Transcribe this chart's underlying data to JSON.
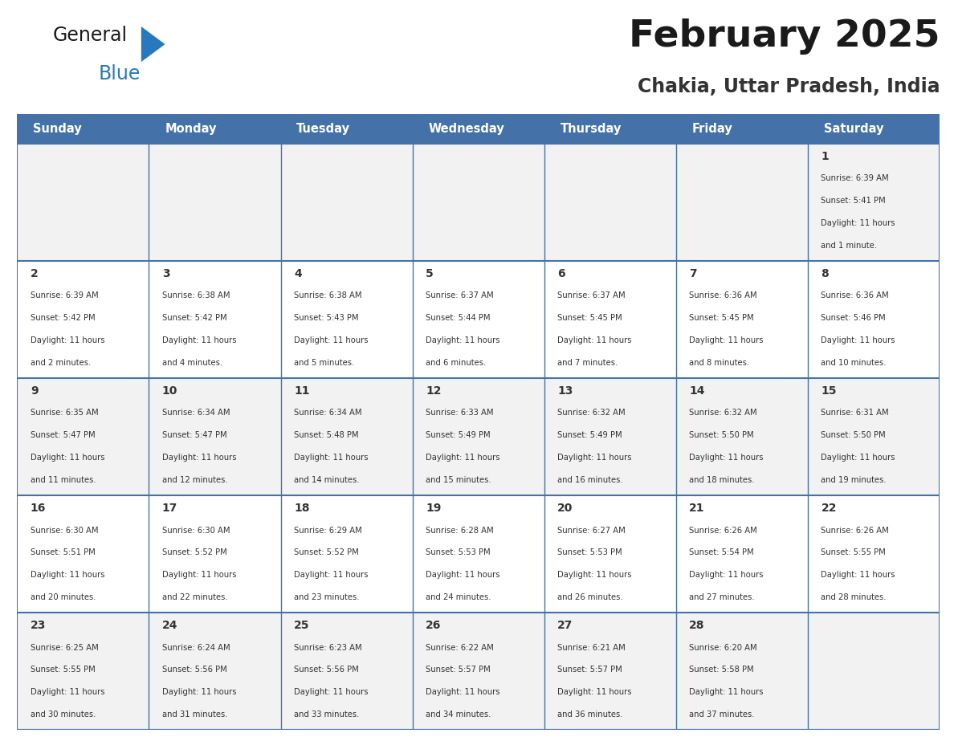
{
  "title": "February 2025",
  "subtitle": "Chakia, Uttar Pradesh, India",
  "header_bg": "#4472a8",
  "header_text_color": "#ffffff",
  "row_bg_odd": "#f2f2f2",
  "row_bg_even": "#ffffff",
  "border_color": "#4472a8",
  "text_color": "#333333",
  "day_names": [
    "Sunday",
    "Monday",
    "Tuesday",
    "Wednesday",
    "Thursday",
    "Friday",
    "Saturday"
  ],
  "days": [
    {
      "day": 1,
      "col": 6,
      "row": 0,
      "sunrise": "6:39 AM",
      "sunset": "5:41 PM",
      "daylight": "11 hours and 1 minute."
    },
    {
      "day": 2,
      "col": 0,
      "row": 1,
      "sunrise": "6:39 AM",
      "sunset": "5:42 PM",
      "daylight": "11 hours and 2 minutes."
    },
    {
      "day": 3,
      "col": 1,
      "row": 1,
      "sunrise": "6:38 AM",
      "sunset": "5:42 PM",
      "daylight": "11 hours and 4 minutes."
    },
    {
      "day": 4,
      "col": 2,
      "row": 1,
      "sunrise": "6:38 AM",
      "sunset": "5:43 PM",
      "daylight": "11 hours and 5 minutes."
    },
    {
      "day": 5,
      "col": 3,
      "row": 1,
      "sunrise": "6:37 AM",
      "sunset": "5:44 PM",
      "daylight": "11 hours and 6 minutes."
    },
    {
      "day": 6,
      "col": 4,
      "row": 1,
      "sunrise": "6:37 AM",
      "sunset": "5:45 PM",
      "daylight": "11 hours and 7 minutes."
    },
    {
      "day": 7,
      "col": 5,
      "row": 1,
      "sunrise": "6:36 AM",
      "sunset": "5:45 PM",
      "daylight": "11 hours and 8 minutes."
    },
    {
      "day": 8,
      "col": 6,
      "row": 1,
      "sunrise": "6:36 AM",
      "sunset": "5:46 PM",
      "daylight": "11 hours and 10 minutes."
    },
    {
      "day": 9,
      "col": 0,
      "row": 2,
      "sunrise": "6:35 AM",
      "sunset": "5:47 PM",
      "daylight": "11 hours and 11 minutes."
    },
    {
      "day": 10,
      "col": 1,
      "row": 2,
      "sunrise": "6:34 AM",
      "sunset": "5:47 PM",
      "daylight": "11 hours and 12 minutes."
    },
    {
      "day": 11,
      "col": 2,
      "row": 2,
      "sunrise": "6:34 AM",
      "sunset": "5:48 PM",
      "daylight": "11 hours and 14 minutes."
    },
    {
      "day": 12,
      "col": 3,
      "row": 2,
      "sunrise": "6:33 AM",
      "sunset": "5:49 PM",
      "daylight": "11 hours and 15 minutes."
    },
    {
      "day": 13,
      "col": 4,
      "row": 2,
      "sunrise": "6:32 AM",
      "sunset": "5:49 PM",
      "daylight": "11 hours and 16 minutes."
    },
    {
      "day": 14,
      "col": 5,
      "row": 2,
      "sunrise": "6:32 AM",
      "sunset": "5:50 PM",
      "daylight": "11 hours and 18 minutes."
    },
    {
      "day": 15,
      "col": 6,
      "row": 2,
      "sunrise": "6:31 AM",
      "sunset": "5:50 PM",
      "daylight": "11 hours and 19 minutes."
    },
    {
      "day": 16,
      "col": 0,
      "row": 3,
      "sunrise": "6:30 AM",
      "sunset": "5:51 PM",
      "daylight": "11 hours and 20 minutes."
    },
    {
      "day": 17,
      "col": 1,
      "row": 3,
      "sunrise": "6:30 AM",
      "sunset": "5:52 PM",
      "daylight": "11 hours and 22 minutes."
    },
    {
      "day": 18,
      "col": 2,
      "row": 3,
      "sunrise": "6:29 AM",
      "sunset": "5:52 PM",
      "daylight": "11 hours and 23 minutes."
    },
    {
      "day": 19,
      "col": 3,
      "row": 3,
      "sunrise": "6:28 AM",
      "sunset": "5:53 PM",
      "daylight": "11 hours and 24 minutes."
    },
    {
      "day": 20,
      "col": 4,
      "row": 3,
      "sunrise": "6:27 AM",
      "sunset": "5:53 PM",
      "daylight": "11 hours and 26 minutes."
    },
    {
      "day": 21,
      "col": 5,
      "row": 3,
      "sunrise": "6:26 AM",
      "sunset": "5:54 PM",
      "daylight": "11 hours and 27 minutes."
    },
    {
      "day": 22,
      "col": 6,
      "row": 3,
      "sunrise": "6:26 AM",
      "sunset": "5:55 PM",
      "daylight": "11 hours and 28 minutes."
    },
    {
      "day": 23,
      "col": 0,
      "row": 4,
      "sunrise": "6:25 AM",
      "sunset": "5:55 PM",
      "daylight": "11 hours and 30 minutes."
    },
    {
      "day": 24,
      "col": 1,
      "row": 4,
      "sunrise": "6:24 AM",
      "sunset": "5:56 PM",
      "daylight": "11 hours and 31 minutes."
    },
    {
      "day": 25,
      "col": 2,
      "row": 4,
      "sunrise": "6:23 AM",
      "sunset": "5:56 PM",
      "daylight": "11 hours and 33 minutes."
    },
    {
      "day": 26,
      "col": 3,
      "row": 4,
      "sunrise": "6:22 AM",
      "sunset": "5:57 PM",
      "daylight": "11 hours and 34 minutes."
    },
    {
      "day": 27,
      "col": 4,
      "row": 4,
      "sunrise": "6:21 AM",
      "sunset": "5:57 PM",
      "daylight": "11 hours and 36 minutes."
    },
    {
      "day": 28,
      "col": 5,
      "row": 4,
      "sunrise": "6:20 AM",
      "sunset": "5:58 PM",
      "daylight": "11 hours and 37 minutes."
    }
  ],
  "num_rows": 5,
  "num_cols": 7,
  "logo_general_color": "#1a1a1a",
  "logo_blue_color": "#2878be",
  "logo_triangle_color": "#2878be",
  "title_color": "#1a1a1a",
  "subtitle_color": "#333333"
}
